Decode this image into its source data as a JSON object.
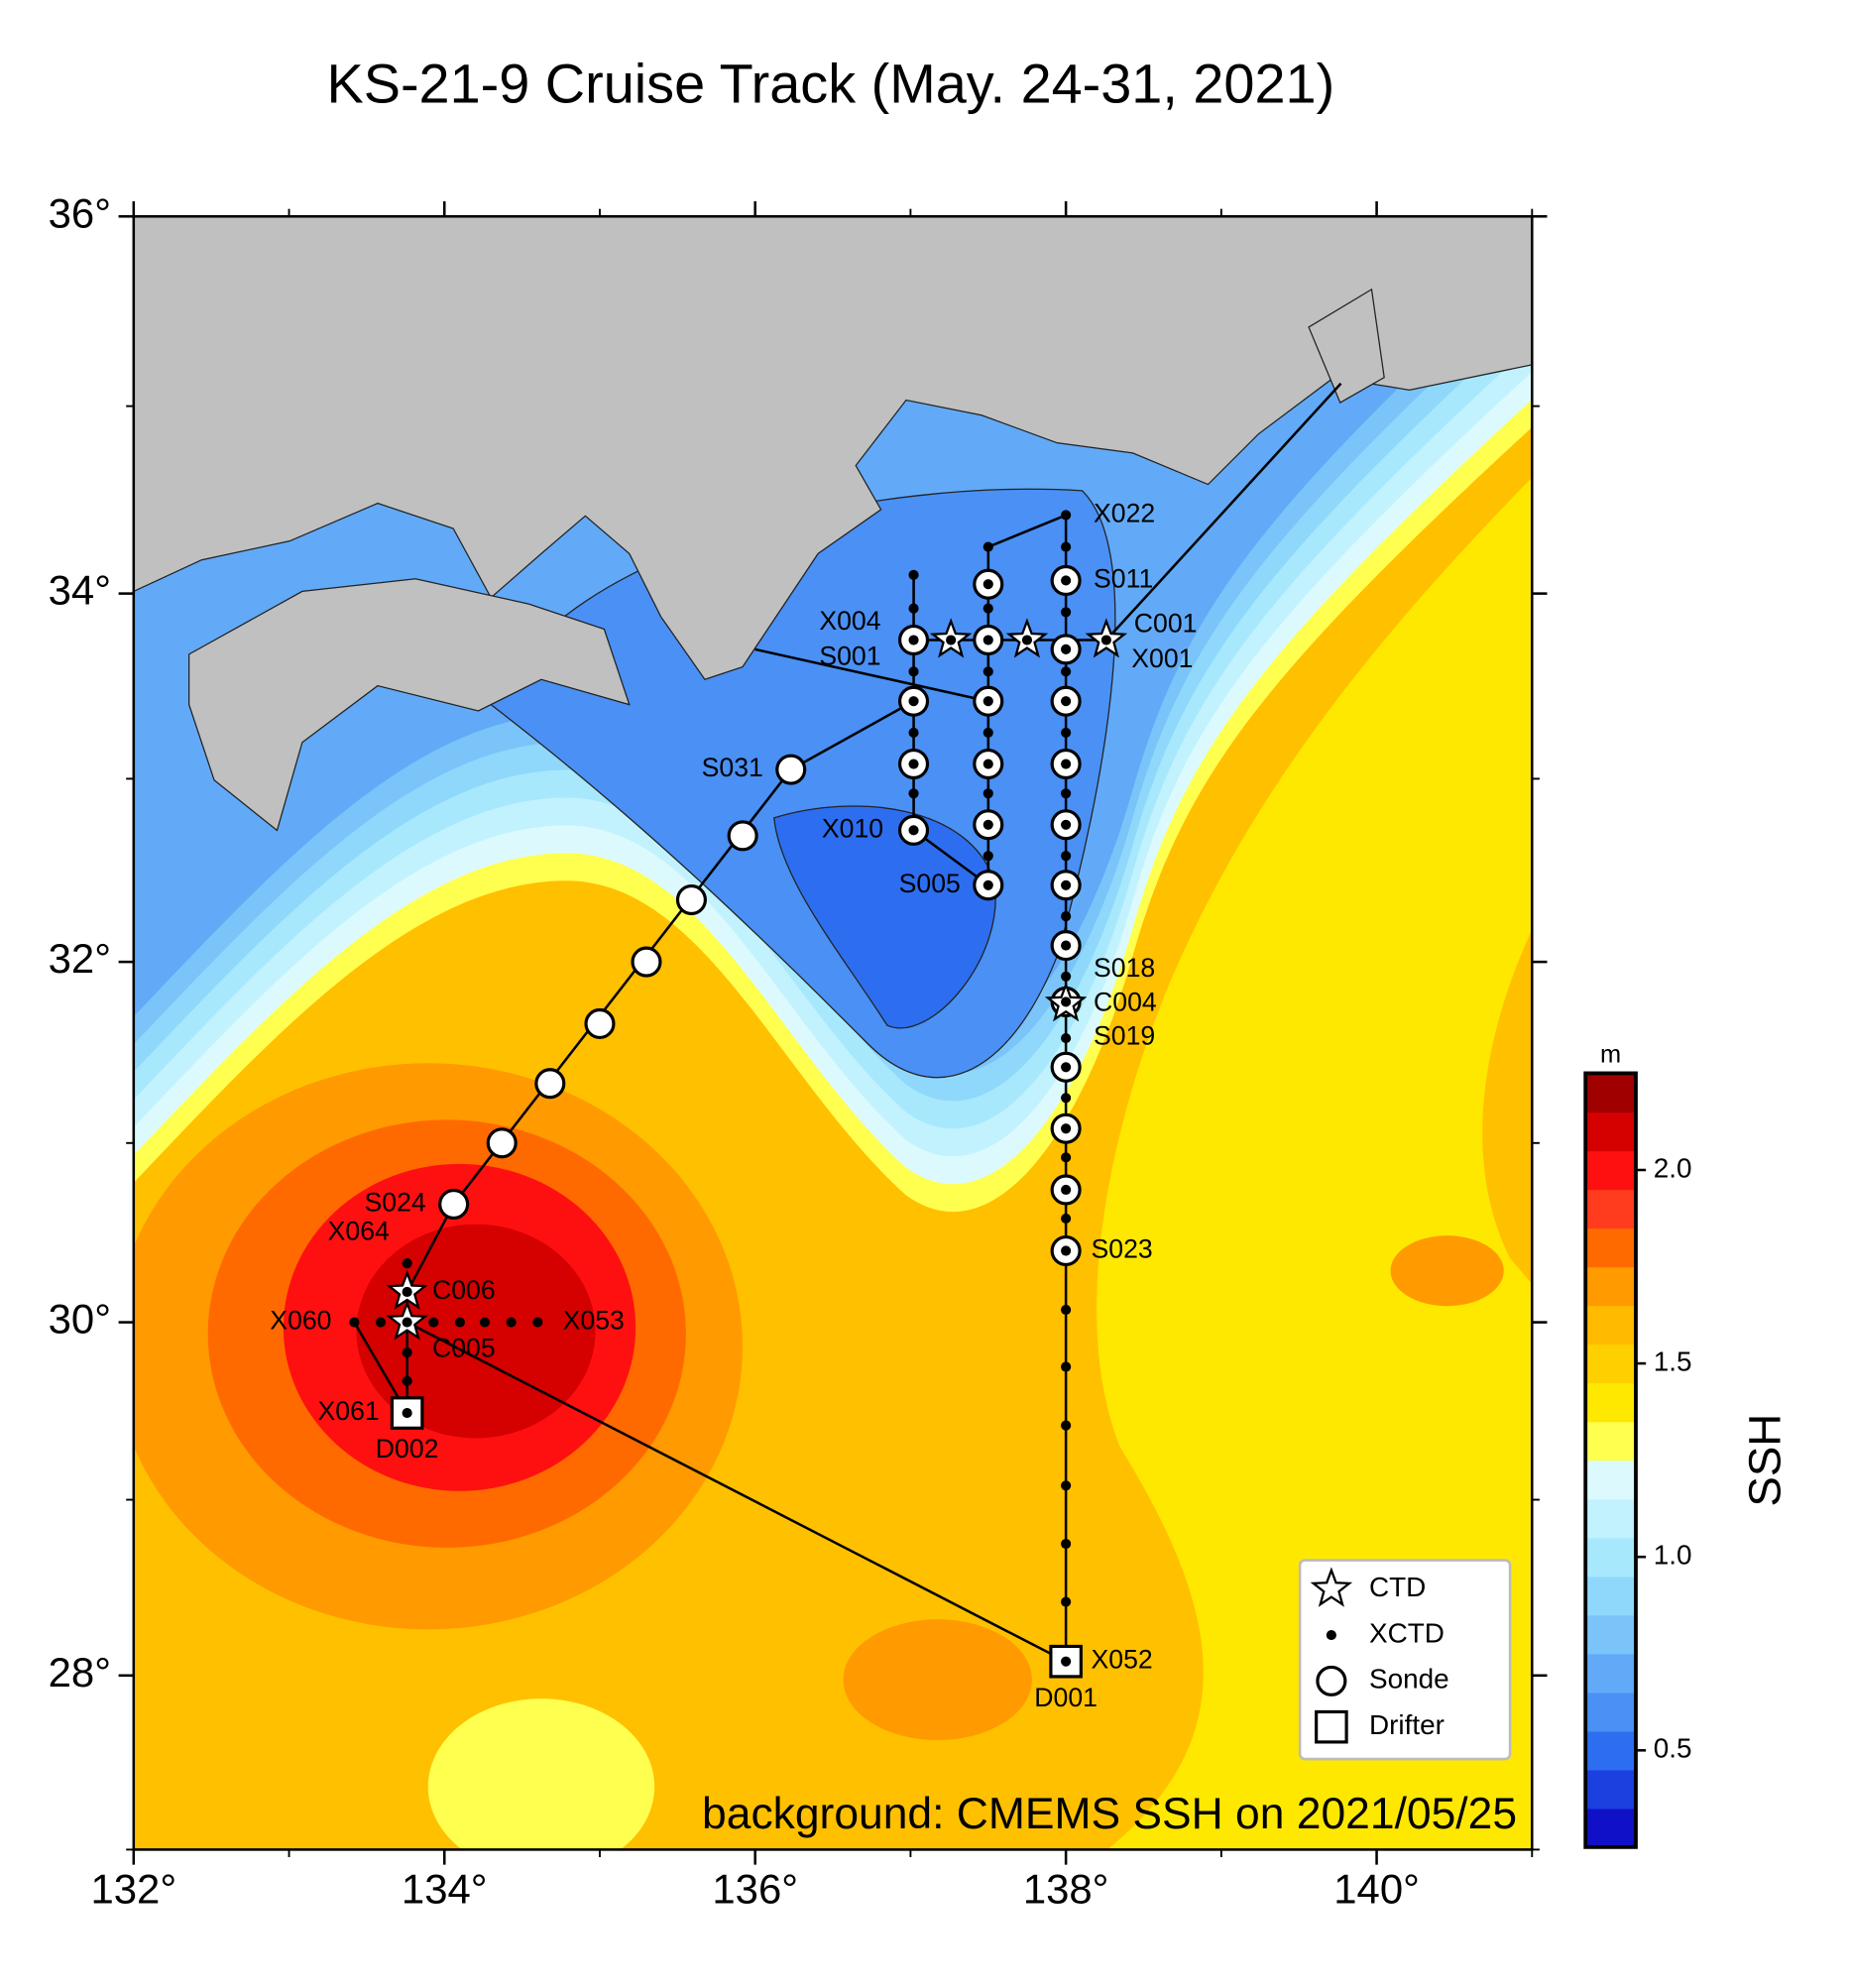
{
  "chart_data": {
    "type": "map",
    "title": "KS-21-9 Cruise Track (May. 24-31, 2021)",
    "projection": "mercator",
    "xlim": [
      132,
      141
    ],
    "ylim": [
      27,
      36
    ],
    "xticks": [
      {
        "value": 132,
        "label": "132°"
      },
      {
        "value": 134,
        "label": "134°"
      },
      {
        "value": 136,
        "label": "136°"
      },
      {
        "value": 138,
        "label": "138°"
      },
      {
        "value": 140,
        "label": "140°"
      }
    ],
    "xticks_minor": [
      133,
      135,
      137,
      139,
      141
    ],
    "yticks": [
      {
        "value": 28,
        "label": "28°"
      },
      {
        "value": 30,
        "label": "30°"
      },
      {
        "value": 32,
        "label": "32°"
      },
      {
        "value": 34,
        "label": "34°"
      },
      {
        "value": 36,
        "label": "36°"
      }
    ],
    "yticks_minor": [
      27,
      29,
      31,
      33,
      35
    ],
    "annotation": "background: CMEMS SSH on 2021/05/25",
    "colorbar": {
      "label": "SSH",
      "unit": "m",
      "lim": [
        0.25,
        2.25
      ],
      "ticks": [
        0.5,
        {
          "value": 1.0,
          "label": "1.0"
        },
        1.5,
        {
          "value": 2.0,
          "label": "2.0"
        }
      ],
      "colors": [
        "#1010c8",
        "#1a40e0",
        "#2d6ef0",
        "#4a90f5",
        "#62aaf7",
        "#7ac4fa",
        "#8fd8fc",
        "#a8e8fd",
        "#c2f2fe",
        "#dcfafe",
        "#ffff50",
        "#ffe800",
        "#ffd000",
        "#ffbb00",
        "#ff9a00",
        "#ff6a00",
        "#ff3c1e",
        "#ff1010",
        "#d50000",
        "#a00000"
      ]
    },
    "track": {
      "lon": [
        139.77,
        138.26,
        null,
        138.0,
        138.0,
        133.76,
        null,
        138.0,
        137.5,
        137.5,
        137.02,
        137.02,
        null,
        136.0,
        137.5,
        null,
        137.02,
        138.26,
        null,
        137.02,
        136.23,
        134.06,
        133.76,
        133.76,
        133.42
      ],
      "lat": [
        35.12,
        33.75,
        null,
        34.42,
        28.08,
        30.0,
        null,
        34.42,
        34.25,
        32.42,
        32.72,
        34.1,
        null,
        33.7,
        33.42,
        null,
        33.75,
        33.75,
        null,
        33.42,
        33.05,
        30.66,
        30.17,
        29.49,
        30.0
      ]
    },
    "series": [
      {
        "name": "CTD",
        "marker": "star",
        "lon": [
          137.26,
          137.75,
          138.26,
          138.0,
          133.76,
          133.76
        ],
        "lat": [
          33.75,
          33.75,
          33.75,
          31.77,
          30.17,
          30.0
        ]
      },
      {
        "name": "XCTD",
        "marker": "dot",
        "lon": [
          137.02,
          137.02,
          137.02,
          137.02,
          137.02,
          137.02,
          137.02,
          137.02,
          137.02,
          137.5,
          137.5,
          137.5,
          137.5,
          137.5,
          137.5,
          137.5,
          137.5,
          137.5,
          137.5,
          137.5,
          137.5,
          138.0,
          138.0,
          138.0,
          138.0,
          138.0,
          138.0,
          138.0,
          138.0,
          138.0,
          138.0,
          138.0,
          138.0,
          138.0,
          138.0,
          138.0,
          138.0,
          138.0,
          138.0,
          138.0,
          138.0,
          138.0,
          138.0,
          138.0,
          138.0,
          138.0,
          138.0,
          138.0,
          138.0,
          138.0,
          138.0,
          138.0,
          138.0,
          138.26,
          137.26,
          137.75,
          133.42,
          133.59,
          133.76,
          133.93,
          134.1,
          134.26,
          134.43,
          134.6,
          133.76,
          133.76,
          133.76,
          133.76,
          133.76
        ],
        "lat": [
          34.1,
          33.92,
          33.75,
          33.58,
          33.42,
          33.25,
          33.08,
          32.92,
          32.72,
          34.25,
          34.05,
          33.92,
          33.75,
          33.58,
          33.42,
          33.25,
          33.08,
          32.92,
          32.75,
          32.58,
          32.42,
          34.42,
          34.25,
          34.07,
          33.9,
          33.7,
          33.58,
          33.42,
          33.25,
          33.08,
          32.92,
          32.75,
          32.58,
          32.42,
          32.25,
          32.09,
          31.92,
          31.78,
          31.58,
          31.42,
          31.25,
          31.08,
          30.92,
          30.74,
          30.58,
          30.4,
          30.07,
          29.75,
          29.42,
          29.08,
          28.75,
          28.42,
          28.08,
          33.75,
          33.75,
          33.75,
          30.0,
          30.0,
          30.0,
          30.0,
          30.0,
          30.0,
          30.0,
          30.0,
          30.33,
          30.17,
          29.83,
          29.67,
          29.49
        ]
      },
      {
        "name": "Sonde",
        "marker": "circle",
        "lon": [
          136.23,
          135.92,
          135.59,
          135.3,
          135.0,
          134.68,
          134.37,
          134.06,
          137.02,
          137.02,
          137.02,
          137.02,
          137.5,
          137.5,
          137.5,
          137.5,
          137.5,
          137.5,
          138.0,
          138.0,
          138.0,
          138.0,
          138.0,
          138.0,
          138.0,
          138.0,
          138.0,
          138.0,
          138.0,
          138.0
        ],
        "lat": [
          33.05,
          32.69,
          32.34,
          32.0,
          31.66,
          31.33,
          31.0,
          30.66,
          33.75,
          33.42,
          33.08,
          32.72,
          34.05,
          33.75,
          33.42,
          33.08,
          32.75,
          32.42,
          34.07,
          33.7,
          33.42,
          33.08,
          32.75,
          32.42,
          32.09,
          31.78,
          31.42,
          31.08,
          30.74,
          30.4
        ]
      },
      {
        "name": "Drifter",
        "marker": "square",
        "lon": [
          138.0,
          133.76
        ],
        "lat": [
          28.08,
          29.49
        ]
      }
    ],
    "station_labels": [
      {
        "text": "X022",
        "lon": 138.0,
        "lat": 34.42
      },
      {
        "text": "S011",
        "lon": 138.0,
        "lat": 34.07
      },
      {
        "text": "X004",
        "lon": 137.02,
        "lat": 33.75
      },
      {
        "text": "C001",
        "lon": 138.26,
        "lat": 33.75
      },
      {
        "text": "S001",
        "lon": 137.02,
        "lat": 33.75
      },
      {
        "text": "X001",
        "lon": 138.26,
        "lat": 33.75
      },
      {
        "text": "S031",
        "lon": 136.23,
        "lat": 33.05
      },
      {
        "text": "X010",
        "lon": 137.02,
        "lat": 32.72
      },
      {
        "text": "S005",
        "lon": 137.5,
        "lat": 32.42
      },
      {
        "text": "S018",
        "lon": 138.0,
        "lat": 31.79
      },
      {
        "text": "C004",
        "lon": 138.0,
        "lat": 31.77
      },
      {
        "text": "S019",
        "lon": 138.0,
        "lat": 31.75
      },
      {
        "text": "S024",
        "lon": 134.06,
        "lat": 30.66
      },
      {
        "text": "X064",
        "lon": 133.76,
        "lat": 30.33
      },
      {
        "text": "C006",
        "lon": 133.76,
        "lat": 30.17
      },
      {
        "text": "X060",
        "lon": 133.42,
        "lat": 30.0
      },
      {
        "text": "X053",
        "lon": 134.6,
        "lat": 30.0
      },
      {
        "text": "C005",
        "lon": 133.76,
        "lat": 30.0
      },
      {
        "text": "X061",
        "lon": 133.76,
        "lat": 29.49
      },
      {
        "text": "D002",
        "lon": 133.76,
        "lat": 29.49
      },
      {
        "text": "S023",
        "lon": 138.0,
        "lat": 30.4
      },
      {
        "text": "X052",
        "lon": 138.0,
        "lat": 28.08
      },
      {
        "text": "D001",
        "lon": 138.0,
        "lat": 28.08
      }
    ]
  }
}
